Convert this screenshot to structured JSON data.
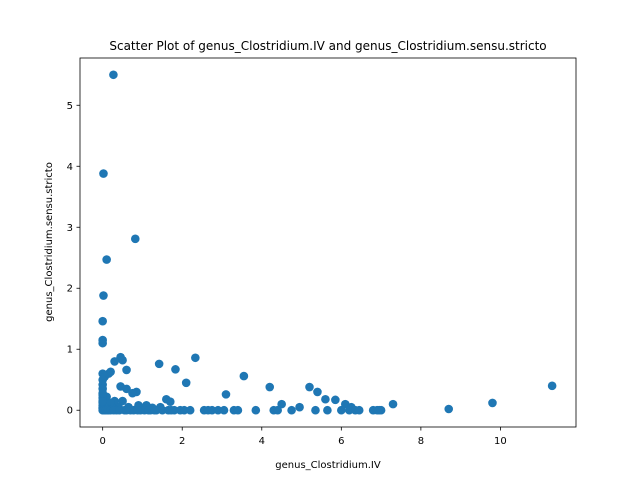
{
  "chart_data": {
    "type": "scatter",
    "title": "Scatter Plot of genus_Clostridium.IV and genus_Clostridium.sensu.stricto",
    "xlabel": "genus_Clostridium.IV",
    "ylabel": "genus_Clostridium.sensu.stricto",
    "xlim": [
      -0.57,
      11.9
    ],
    "ylim": [
      -0.275,
      5.775
    ],
    "xticks": [
      0,
      2,
      4,
      6,
      8,
      10
    ],
    "yticks": [
      0,
      1,
      2,
      3,
      4,
      5
    ],
    "grid": false,
    "marker_color": "#1f77b4",
    "points": [
      [
        0.27,
        5.5
      ],
      [
        0.02,
        3.88
      ],
      [
        0.82,
        2.81
      ],
      [
        0.1,
        2.47
      ],
      [
        0.02,
        1.88
      ],
      [
        0.0,
        1.46
      ],
      [
        0.0,
        1.15
      ],
      [
        0.0,
        1.1
      ],
      [
        0.45,
        0.87
      ],
      [
        0.3,
        0.8
      ],
      [
        0.5,
        0.82
      ],
      [
        2.33,
        0.86
      ],
      [
        1.42,
        0.76
      ],
      [
        0.6,
        0.66
      ],
      [
        1.83,
        0.67
      ],
      [
        0.2,
        0.63
      ],
      [
        0.15,
        0.6
      ],
      [
        0.0,
        0.6
      ],
      [
        0.05,
        0.55
      ],
      [
        3.55,
        0.56
      ],
      [
        0.0,
        0.5
      ],
      [
        2.1,
        0.45
      ],
      [
        0.0,
        0.42
      ],
      [
        0.45,
        0.39
      ],
      [
        0.6,
        0.35
      ],
      [
        4.2,
        0.38
      ],
      [
        5.2,
        0.38
      ],
      [
        11.3,
        0.4
      ],
      [
        0.0,
        0.35
      ],
      [
        0.85,
        0.3
      ],
      [
        0.75,
        0.28
      ],
      [
        5.4,
        0.3
      ],
      [
        3.1,
        0.26
      ],
      [
        0.0,
        0.25
      ],
      [
        0.1,
        0.22
      ],
      [
        0.0,
        0.2
      ],
      [
        1.6,
        0.18
      ],
      [
        5.6,
        0.18
      ],
      [
        5.85,
        0.17
      ],
      [
        0.3,
        0.15
      ],
      [
        0.5,
        0.15
      ],
      [
        1.7,
        0.14
      ],
      [
        0.0,
        0.12
      ],
      [
        0.2,
        0.12
      ],
      [
        9.8,
        0.12
      ],
      [
        4.5,
        0.1
      ],
      [
        6.1,
        0.1
      ],
      [
        7.3,
        0.1
      ],
      [
        1.1,
        0.08
      ],
      [
        0.9,
        0.08
      ],
      [
        0.0,
        0.08
      ],
      [
        4.95,
        0.05
      ],
      [
        6.25,
        0.05
      ],
      [
        1.45,
        0.05
      ],
      [
        0.0,
        0.05
      ],
      [
        0.4,
        0.05
      ],
      [
        0.65,
        0.05
      ],
      [
        1.25,
        0.04
      ],
      [
        0.0,
        0.03
      ],
      [
        0.1,
        0.03
      ],
      [
        0.25,
        0.03
      ],
      [
        8.7,
        0.02
      ],
      [
        0.0,
        0.02
      ],
      [
        0.05,
        0.0
      ],
      [
        0.15,
        0.0
      ],
      [
        0.35,
        0.0
      ],
      [
        0.55,
        0.0
      ],
      [
        0.7,
        0.0
      ],
      [
        0.95,
        0.0
      ],
      [
        1.05,
        0.0
      ],
      [
        1.2,
        0.0
      ],
      [
        1.35,
        0.0
      ],
      [
        1.5,
        0.0
      ],
      [
        1.65,
        0.0
      ],
      [
        1.8,
        0.0
      ],
      [
        1.95,
        0.0
      ],
      [
        2.05,
        0.0
      ],
      [
        2.2,
        0.0
      ],
      [
        2.55,
        0.0
      ],
      [
        2.65,
        0.0
      ],
      [
        2.75,
        0.0
      ],
      [
        2.9,
        0.0
      ],
      [
        3.05,
        0.0
      ],
      [
        3.3,
        0.0
      ],
      [
        3.4,
        0.0
      ],
      [
        3.85,
        0.0
      ],
      [
        4.3,
        0.0
      ],
      [
        4.4,
        0.0
      ],
      [
        4.75,
        0.0
      ],
      [
        5.35,
        0.0
      ],
      [
        5.65,
        0.0
      ],
      [
        6.0,
        0.0
      ],
      [
        6.2,
        0.0
      ],
      [
        6.35,
        0.0
      ],
      [
        6.45,
        0.0
      ],
      [
        6.8,
        0.0
      ],
      [
        6.9,
        0.0
      ],
      [
        6.95,
        0.0
      ],
      [
        7.0,
        0.0
      ],
      [
        0.0,
        0.0
      ],
      [
        0.02,
        0.0
      ],
      [
        0.08,
        0.0
      ],
      [
        0.12,
        0.0
      ],
      [
        0.2,
        0.0
      ],
      [
        0.28,
        0.0
      ],
      [
        0.42,
        0.0
      ],
      [
        0.6,
        0.0
      ],
      [
        0.78,
        0.0
      ],
      [
        0.88,
        0.0
      ],
      [
        1.15,
        0.0
      ],
      [
        1.3,
        0.0
      ],
      [
        1.72,
        0.0
      ],
      [
        0.0,
        0.15
      ],
      [
        0.0,
        0.28
      ]
    ]
  }
}
